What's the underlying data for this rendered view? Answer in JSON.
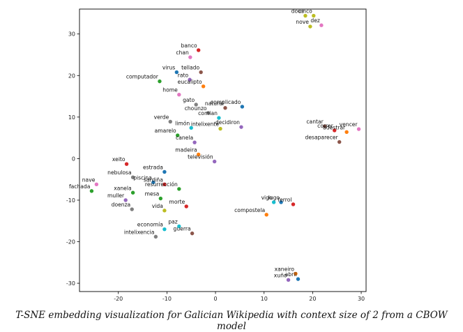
{
  "caption": "T-SNE embedding visualization for Galician Wikipedia with context size of 2 from a CBOW model",
  "chart_data": {
    "type": "scatter",
    "xlim": [
      -28,
      31
    ],
    "ylim": [
      -32,
      36
    ],
    "x_ticks": [
      -20,
      -10,
      0,
      10,
      20,
      30
    ],
    "y_ticks": [
      -30,
      -20,
      -10,
      0,
      10,
      20,
      30
    ],
    "x_tick_labels": [
      "-20",
      "-10",
      "0",
      "10",
      "20",
      "30"
    ],
    "y_tick_labels": [
      "-30",
      "-20",
      "-10",
      "0",
      "10",
      "20",
      "30"
    ],
    "grid": false,
    "points": [
      {
        "label": "dous",
        "x": 18.5,
        "y": 34.4,
        "color": "#bcbd22"
      },
      {
        "label": "cinco",
        "x": 20.2,
        "y": 34.4,
        "color": "#bcbd22"
      },
      {
        "label": "nove",
        "x": 19.5,
        "y": 31.8,
        "color": "#bcbd22"
      },
      {
        "label": "dez",
        "x": 21.8,
        "y": 32.1,
        "color": "#e377c2"
      },
      {
        "label": "banco",
        "x": -3.5,
        "y": 26.1,
        "color": "#d62728"
      },
      {
        "label": "chan",
        "x": -5.2,
        "y": 24.4,
        "color": "#e377c2"
      },
      {
        "label": "virus",
        "x": -8.0,
        "y": 20.8,
        "color": "#1f77b4"
      },
      {
        "label": "tellado",
        "x": -3.0,
        "y": 20.8,
        "color": "#8c564b"
      },
      {
        "label": "rato",
        "x": -5.3,
        "y": 19.0,
        "color": "#9467bd"
      },
      {
        "label": "computador",
        "x": -11.5,
        "y": 18.6,
        "color": "#2ca02c"
      },
      {
        "label": "eucalipto",
        "x": -2.5,
        "y": 17.4,
        "color": "#ff7f0e"
      },
      {
        "label": "home",
        "x": -7.5,
        "y": 15.4,
        "color": "#e377c2"
      },
      {
        "label": "gato",
        "x": -4.0,
        "y": 13.0,
        "color": "#7f7f7f"
      },
      {
        "label": "natural",
        "x": 2.0,
        "y": 12.2,
        "color": "#8c564b"
      },
      {
        "label": "complicado",
        "x": 5.5,
        "y": 12.5,
        "color": "#1f77b4"
      },
      {
        "label": "chounzo",
        "x": -1.5,
        "y": 11.0,
        "color": "#7f7f7f"
      },
      {
        "label": "comian",
        "x": 0.7,
        "y": 9.8,
        "color": "#17becf"
      },
      {
        "label": "verde",
        "x": -9.3,
        "y": 8.9,
        "color": "#7f7f7f"
      },
      {
        "label": "limón",
        "x": -5.0,
        "y": 7.4,
        "color": "#17becf"
      },
      {
        "label": "intelixente",
        "x": 1.0,
        "y": 7.2,
        "color": "#bcbd22"
      },
      {
        "label": "decidiron",
        "x": 5.3,
        "y": 7.6,
        "color": "#9467bd"
      },
      {
        "label": "amarelo",
        "x": -7.8,
        "y": 5.6,
        "color": "#2ca02c"
      },
      {
        "label": "canela",
        "x": -4.3,
        "y": 3.9,
        "color": "#9467bd"
      },
      {
        "label": "madeira",
        "x": -3.5,
        "y": 1.0,
        "color": "#ff7f0e"
      },
      {
        "label": "televisión",
        "x": -0.2,
        "y": -0.7,
        "color": "#9467bd"
      },
      {
        "label": "cantar",
        "x": 22.5,
        "y": 7.8,
        "color": "#8c564b"
      },
      {
        "label": "correr",
        "x": 24.5,
        "y": 6.8,
        "color": "#d62728"
      },
      {
        "label": "vencer",
        "x": 29.5,
        "y": 7.1,
        "color": "#e377c2"
      },
      {
        "label": "adestrar",
        "x": 27.0,
        "y": 6.4,
        "color": "#ff7f0e"
      },
      {
        "label": "desaparecer",
        "x": 25.5,
        "y": 4.0,
        "color": "#8c564b"
      },
      {
        "label": "xeito",
        "x": -18.3,
        "y": -1.3,
        "color": "#d62728"
      },
      {
        "label": "estrada",
        "x": -10.5,
        "y": -3.2,
        "color": "#1f77b4"
      },
      {
        "label": "nebulosa",
        "x": -17.0,
        "y": -4.5,
        "color": "#7f7f7f"
      },
      {
        "label": "piscina",
        "x": -12.8,
        "y": -5.7,
        "color": "#1f77b4"
      },
      {
        "label": "sardiña",
        "x": -10.5,
        "y": -6.2,
        "color": "#d62728"
      },
      {
        "label": "resurrección",
        "x": -7.5,
        "y": -7.3,
        "color": "#2ca02c"
      },
      {
        "label": "nave",
        "x": -24.5,
        "y": -6.2,
        "color": "#e377c2"
      },
      {
        "label": "fachada",
        "x": -25.5,
        "y": -7.8,
        "color": "#2ca02c"
      },
      {
        "label": "xanela",
        "x": -17.0,
        "y": -8.2,
        "color": "#2ca02c"
      },
      {
        "label": "muller",
        "x": -18.5,
        "y": -10.0,
        "color": "#9467bd"
      },
      {
        "label": "mesa",
        "x": -11.3,
        "y": -9.6,
        "color": "#2ca02c"
      },
      {
        "label": "doenza",
        "x": -17.2,
        "y": -12.2,
        "color": "#7f7f7f"
      },
      {
        "label": "vida",
        "x": -10.5,
        "y": -12.5,
        "color": "#bcbd22"
      },
      {
        "label": "morte",
        "x": -6.0,
        "y": -11.5,
        "color": "#d62728"
      },
      {
        "label": "economía",
        "x": -10.5,
        "y": -17.0,
        "color": "#17becf"
      },
      {
        "label": "paz",
        "x": -7.5,
        "y": -16.3,
        "color": "#17becf"
      },
      {
        "label": "guerra",
        "x": -4.8,
        "y": -18.0,
        "color": "#8c564b"
      },
      {
        "label": "intelixencia",
        "x": -12.3,
        "y": -18.8,
        "color": "#7f7f7f"
      },
      {
        "label": "vigo",
        "x": 12.0,
        "y": -10.5,
        "color": "#17becf"
      },
      {
        "label": "lugo",
        "x": 13.5,
        "y": -10.5,
        "color": "#1f77b4"
      },
      {
        "label": "ferrol",
        "x": 16.0,
        "y": -11.0,
        "color": "#d62728"
      },
      {
        "label": "compostela",
        "x": 10.5,
        "y": -13.5,
        "color": "#ff7f0e"
      },
      {
        "label": "xaneiro",
        "x": 16.5,
        "y": -27.7,
        "color": "#ff7f0e"
      },
      {
        "label": "xuño",
        "x": 15.0,
        "y": -29.2,
        "color": "#9467bd"
      },
      {
        "label": "abril",
        "x": 17.0,
        "y": -29.0,
        "color": "#1f77b4"
      }
    ]
  }
}
